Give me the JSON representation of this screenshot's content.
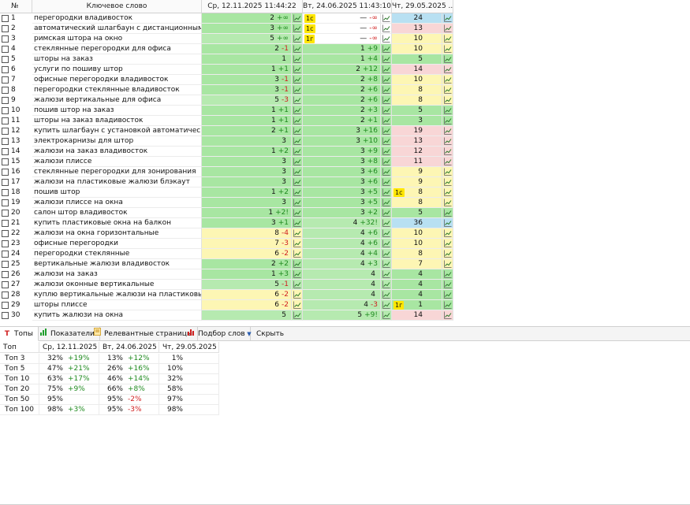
{
  "header": {
    "num": "№",
    "keyword": "Ключевое слово",
    "d1": "Ср, 12.11.2025 11:44:22",
    "d2": "Вт, 24.06.2025 11:43:10",
    "d3": "Чт, 29.05.2025 ..."
  },
  "rows": [
    {
      "n": "1",
      "kw": "перегородки владивосток",
      "c1": {
        "p": "2",
        "d": "+∞",
        "dir": "up",
        "bg": "g"
      },
      "t1": "1с",
      "c2": {
        "p": "—",
        "d": "-∞",
        "dir": "dn",
        "bg": ""
      },
      "t2": "",
      "c3": {
        "p": "24",
        "bg": "b"
      }
    },
    {
      "n": "2",
      "kw": "автоматический шлагбаун с дистанционным упра...",
      "c1": {
        "p": "3",
        "d": "+∞",
        "dir": "up",
        "bg": "g"
      },
      "t1": "1с",
      "c2": {
        "p": "—",
        "d": "-∞",
        "dir": "dn",
        "bg": ""
      },
      "t2": "",
      "c3": {
        "p": "13",
        "bg": "p"
      }
    },
    {
      "n": "3",
      "kw": "римская штора на окно",
      "c1": {
        "p": "5",
        "d": "+∞",
        "dir": "up",
        "bg": "g2"
      },
      "t1": "1г",
      "c2": {
        "p": "—",
        "d": "-∞",
        "dir": "dn",
        "bg": ""
      },
      "t2": "",
      "c3": {
        "p": "10",
        "bg": "y"
      }
    },
    {
      "n": "4",
      "kw": "стеклянные перегородки для офиса",
      "c1": {
        "p": "2",
        "d": "-1",
        "dir": "dn",
        "bg": "g"
      },
      "t1": "",
      "c2": {
        "p": "1",
        "d": "+9",
        "dir": "up",
        "bg": "g"
      },
      "t2": "",
      "c3": {
        "p": "10",
        "bg": "y"
      }
    },
    {
      "n": "5",
      "kw": "шторы на заказ",
      "c1": {
        "p": "1",
        "d": "",
        "dir": "",
        "bg": "g"
      },
      "t1": "",
      "c2": {
        "p": "1",
        "d": "+4",
        "dir": "up",
        "bg": "g"
      },
      "t2": "",
      "c3": {
        "p": "5",
        "bg": "g"
      }
    },
    {
      "n": "6",
      "kw": "услуги по пошиву штор",
      "c1": {
        "p": "1",
        "d": "+1",
        "dir": "up",
        "bg": "g"
      },
      "t1": "",
      "c2": {
        "p": "2",
        "d": "+12",
        "dir": "up",
        "bg": "g"
      },
      "t2": "",
      "c3": {
        "p": "14",
        "bg": "p"
      }
    },
    {
      "n": "7",
      "kw": "офисные перегородки владивосток",
      "c1": {
        "p": "3",
        "d": "-1",
        "dir": "dn",
        "bg": "g"
      },
      "t1": "",
      "c2": {
        "p": "2",
        "d": "+8",
        "dir": "up",
        "bg": "g"
      },
      "t2": "",
      "c3": {
        "p": "10",
        "bg": "y"
      }
    },
    {
      "n": "8",
      "kw": "перегородки стеклянные владивосток",
      "c1": {
        "p": "3",
        "d": "-1",
        "dir": "dn",
        "bg": "g"
      },
      "t1": "",
      "c2": {
        "p": "2",
        "d": "+6",
        "dir": "up",
        "bg": "g"
      },
      "t2": "",
      "c3": {
        "p": "8",
        "bg": "y"
      }
    },
    {
      "n": "9",
      "kw": "жалюзи вертикальные для офиса",
      "c1": {
        "p": "5",
        "d": "-3",
        "dir": "dn",
        "bg": "g2"
      },
      "t1": "",
      "c2": {
        "p": "2",
        "d": "+6",
        "dir": "up",
        "bg": "g"
      },
      "t2": "",
      "c3": {
        "p": "8",
        "bg": "y"
      }
    },
    {
      "n": "10",
      "kw": "пошив штор на заказ",
      "c1": {
        "p": "1",
        "d": "+1",
        "dir": "up",
        "bg": "g"
      },
      "t1": "",
      "c2": {
        "p": "2",
        "d": "+3",
        "dir": "up",
        "bg": "g"
      },
      "t2": "",
      "c3": {
        "p": "5",
        "bg": "g"
      }
    },
    {
      "n": "11",
      "kw": "шторы на заказ владивосток",
      "c1": {
        "p": "1",
        "d": "+1",
        "dir": "up",
        "bg": "g"
      },
      "t1": "",
      "c2": {
        "p": "2",
        "d": "+1",
        "dir": "up",
        "bg": "g"
      },
      "t2": "",
      "c3": {
        "p": "3",
        "bg": "g"
      }
    },
    {
      "n": "12",
      "kw": "купить шлагбаун с установкой автоматический",
      "c1": {
        "p": "2",
        "d": "+1",
        "dir": "up",
        "bg": "g"
      },
      "t1": "",
      "c2": {
        "p": "3",
        "d": "+16",
        "dir": "up",
        "bg": "g"
      },
      "t2": "",
      "c3": {
        "p": "19",
        "bg": "p"
      }
    },
    {
      "n": "13",
      "kw": "электрокарнизы для штор",
      "c1": {
        "p": "3",
        "d": "",
        "dir": "",
        "bg": "g"
      },
      "t1": "",
      "c2": {
        "p": "3",
        "d": "+10",
        "dir": "up",
        "bg": "g"
      },
      "t2": "",
      "c3": {
        "p": "13",
        "bg": "p"
      }
    },
    {
      "n": "14",
      "kw": "жалюзи на заказ владивосток",
      "c1": {
        "p": "1",
        "d": "+2",
        "dir": "up",
        "bg": "g"
      },
      "t1": "",
      "c2": {
        "p": "3",
        "d": "+9",
        "dir": "up",
        "bg": "g"
      },
      "t2": "",
      "c3": {
        "p": "12",
        "bg": "p"
      }
    },
    {
      "n": "15",
      "kw": "жалюзи плиссе",
      "c1": {
        "p": "3",
        "d": "",
        "dir": "",
        "bg": "g"
      },
      "t1": "",
      "c2": {
        "p": "3",
        "d": "+8",
        "dir": "up",
        "bg": "g"
      },
      "t2": "",
      "c3": {
        "p": "11",
        "bg": "p"
      }
    },
    {
      "n": "16",
      "kw": "стеклянные перегородки для зонирования",
      "c1": {
        "p": "3",
        "d": "",
        "dir": "",
        "bg": "g"
      },
      "t1": "",
      "c2": {
        "p": "3",
        "d": "+6",
        "dir": "up",
        "bg": "g"
      },
      "t2": "",
      "c3": {
        "p": "9",
        "bg": "y"
      }
    },
    {
      "n": "17",
      "kw": "жалюзи на пластиковые жалюзи блэкаут",
      "c1": {
        "p": "3",
        "d": "",
        "dir": "",
        "bg": "g"
      },
      "t1": "",
      "c2": {
        "p": "3",
        "d": "+6",
        "dir": "up",
        "bg": "g"
      },
      "t2": "",
      "c3": {
        "p": "9",
        "bg": "y"
      }
    },
    {
      "n": "18",
      "kw": "пошив штор",
      "c1": {
        "p": "1",
        "d": "+2",
        "dir": "up",
        "bg": "g"
      },
      "t1": "",
      "c2": {
        "p": "3",
        "d": "+5",
        "dir": "up",
        "bg": "g"
      },
      "t2": "1с",
      "c3": {
        "p": "8",
        "bg": "y"
      }
    },
    {
      "n": "19",
      "kw": "жалюзи плиссе на окна",
      "c1": {
        "p": "3",
        "d": "",
        "dir": "",
        "bg": "g"
      },
      "t1": "",
      "c2": {
        "p": "3",
        "d": "+5",
        "dir": "up",
        "bg": "g"
      },
      "t2": "",
      "c3": {
        "p": "8",
        "bg": "y"
      }
    },
    {
      "n": "20",
      "kw": "салон штор владивосток",
      "c1": {
        "p": "1",
        "d": "+2!",
        "dir": "up",
        "bg": "g"
      },
      "t1": "",
      "c2": {
        "p": "3",
        "d": "+2",
        "dir": "up",
        "bg": "g"
      },
      "t2": "",
      "c3": {
        "p": "5",
        "bg": "g"
      }
    },
    {
      "n": "21",
      "kw": "купить пластиковые окна на балкон",
      "c1": {
        "p": "3",
        "d": "+1",
        "dir": "up",
        "bg": "g"
      },
      "t1": "",
      "c2": {
        "p": "4",
        "d": "+32!",
        "dir": "up",
        "bg": "g2"
      },
      "t2": "",
      "c3": {
        "p": "36",
        "bg": "b"
      }
    },
    {
      "n": "22",
      "kw": "жалюзи на окна горизонтальные",
      "c1": {
        "p": "8",
        "d": "-4",
        "dir": "dn",
        "bg": "y"
      },
      "t1": "",
      "c2": {
        "p": "4",
        "d": "+6",
        "dir": "up",
        "bg": "g2"
      },
      "t2": "",
      "c3": {
        "p": "10",
        "bg": "y"
      }
    },
    {
      "n": "23",
      "kw": "офисные перегородки",
      "c1": {
        "p": "7",
        "d": "-3",
        "dir": "dn",
        "bg": "y"
      },
      "t1": "",
      "c2": {
        "p": "4",
        "d": "+6",
        "dir": "up",
        "bg": "g2"
      },
      "t2": "",
      "c3": {
        "p": "10",
        "bg": "y"
      }
    },
    {
      "n": "24",
      "kw": "перегородки стеклянные",
      "c1": {
        "p": "6",
        "d": "-2",
        "dir": "dn",
        "bg": "y"
      },
      "t1": "",
      "c2": {
        "p": "4",
        "d": "+4",
        "dir": "up",
        "bg": "g2"
      },
      "t2": "",
      "c3": {
        "p": "8",
        "bg": "y"
      }
    },
    {
      "n": "25",
      "kw": "вертикальные жалюзи владивосток",
      "c1": {
        "p": "2",
        "d": "+2",
        "dir": "up",
        "bg": "g"
      },
      "t1": "",
      "c2": {
        "p": "4",
        "d": "+3",
        "dir": "up",
        "bg": "g2"
      },
      "t2": "",
      "c3": {
        "p": "7",
        "bg": "y"
      }
    },
    {
      "n": "26",
      "kw": "жалюзи на заказ",
      "c1": {
        "p": "1",
        "d": "+3",
        "dir": "up",
        "bg": "g"
      },
      "t1": "",
      "c2": {
        "p": "4",
        "d": "",
        "dir": "",
        "bg": "g2"
      },
      "t2": "",
      "c3": {
        "p": "4",
        "bg": "g"
      }
    },
    {
      "n": "27",
      "kw": "жалюзи оконные вертикальные",
      "c1": {
        "p": "5",
        "d": "-1",
        "dir": "dn",
        "bg": "g2"
      },
      "t1": "",
      "c2": {
        "p": "4",
        "d": "",
        "dir": "",
        "bg": "g2"
      },
      "t2": "",
      "c3": {
        "p": "4",
        "bg": "g"
      }
    },
    {
      "n": "28",
      "kw": "куплю вертикальные жалюзи на пластиковые окна",
      "c1": {
        "p": "6",
        "d": "-2",
        "dir": "dn",
        "bg": "y"
      },
      "t1": "",
      "c2": {
        "p": "4",
        "d": "",
        "dir": "",
        "bg": "g2"
      },
      "t2": "",
      "c3": {
        "p": "4",
        "bg": "g"
      }
    },
    {
      "n": "29",
      "kw": "шторы плиссе",
      "c1": {
        "p": "6",
        "d": "-2",
        "dir": "dn",
        "bg": "y"
      },
      "t1": "",
      "c2": {
        "p": "4",
        "d": "-3",
        "dir": "dn",
        "bg": "g2"
      },
      "t2": "1г",
      "c3": {
        "p": "1",
        "bg": "g"
      }
    },
    {
      "n": "30",
      "kw": "купить жалюзи на окна",
      "c1": {
        "p": "5",
        "d": "",
        "dir": "",
        "bg": "g2"
      },
      "t1": "",
      "c2": {
        "p": "5",
        "d": "+9!",
        "dir": "up",
        "bg": "g2"
      },
      "t2": "",
      "c3": {
        "p": "14",
        "bg": "p"
      }
    }
  ],
  "tabs": [
    {
      "label": "Топы",
      "icon": "T",
      "active": true
    },
    {
      "label": "Показатели",
      "icon": "bar-chart-icon",
      "active": false
    },
    {
      "label": "Релевантные страницы",
      "icon": "page-icon",
      "active": false
    },
    {
      "label": "Подбор слов",
      "icon": "word-chart-icon",
      "active": false
    },
    {
      "label": "Скрыть",
      "icon": "triangle-down-icon",
      "active": false
    }
  ],
  "tops": {
    "headers": [
      "Топ",
      "Ср, 12.11.2025 ...",
      "Вт, 24.06.2025 ...",
      "Чт, 29.05.2025 ..."
    ],
    "rows": [
      {
        "name": "Топ 3",
        "a": "32%",
        "ad": "+19%",
        "adir": "up",
        "b": "13%",
        "bd": "+12%",
        "bdir": "up",
        "c": "1%"
      },
      {
        "name": "Топ 5",
        "a": "47%",
        "ad": "+21%",
        "adir": "up",
        "b": "26%",
        "bd": "+16%",
        "bdir": "up",
        "c": "10%"
      },
      {
        "name": "Топ 10",
        "a": "63%",
        "ad": "+17%",
        "adir": "up",
        "b": "46%",
        "bd": "+14%",
        "bdir": "up",
        "c": "32%"
      },
      {
        "name": "Топ 20",
        "a": "75%",
        "ad": "+9%",
        "adir": "up",
        "b": "66%",
        "bd": "+8%",
        "bdir": "up",
        "c": "58%"
      },
      {
        "name": "Топ 50",
        "a": "95%",
        "ad": "",
        "adir": "",
        "b": "95%",
        "bd": "-2%",
        "bdir": "dn",
        "c": "97%"
      },
      {
        "name": "Топ 100",
        "a": "98%",
        "ad": "+3%",
        "adir": "up",
        "b": "95%",
        "bd": "-3%",
        "bdir": "dn",
        "c": "98%"
      }
    ]
  }
}
